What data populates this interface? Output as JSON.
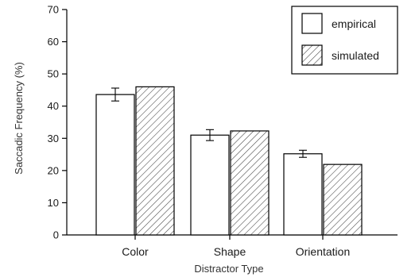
{
  "chart_data": {
    "type": "bar",
    "xlabel": "Distractor Type",
    "ylabel": "Saccadic Frequency (%)",
    "ylim": [
      0,
      70
    ],
    "yticks": [
      0,
      10,
      20,
      30,
      40,
      50,
      60,
      70
    ],
    "grid": false,
    "legend_position": "top-right",
    "categories": [
      "Color",
      "Shape",
      "Orientation"
    ],
    "series": [
      {
        "name": "empirical",
        "pattern": "solid-white",
        "values": [
          43.6,
          31.0,
          25.2
        ],
        "error": [
          2.0,
          1.7,
          1.1
        ]
      },
      {
        "name": "simulated",
        "pattern": "diagonal-hatch",
        "values": [
          46.0,
          32.3,
          21.9
        ],
        "error": [
          0,
          0,
          0
        ]
      }
    ],
    "colors": {
      "stroke": "#000000",
      "fill": "#ffffff",
      "hatch": "#444444",
      "text": "#1a1a1a"
    }
  }
}
